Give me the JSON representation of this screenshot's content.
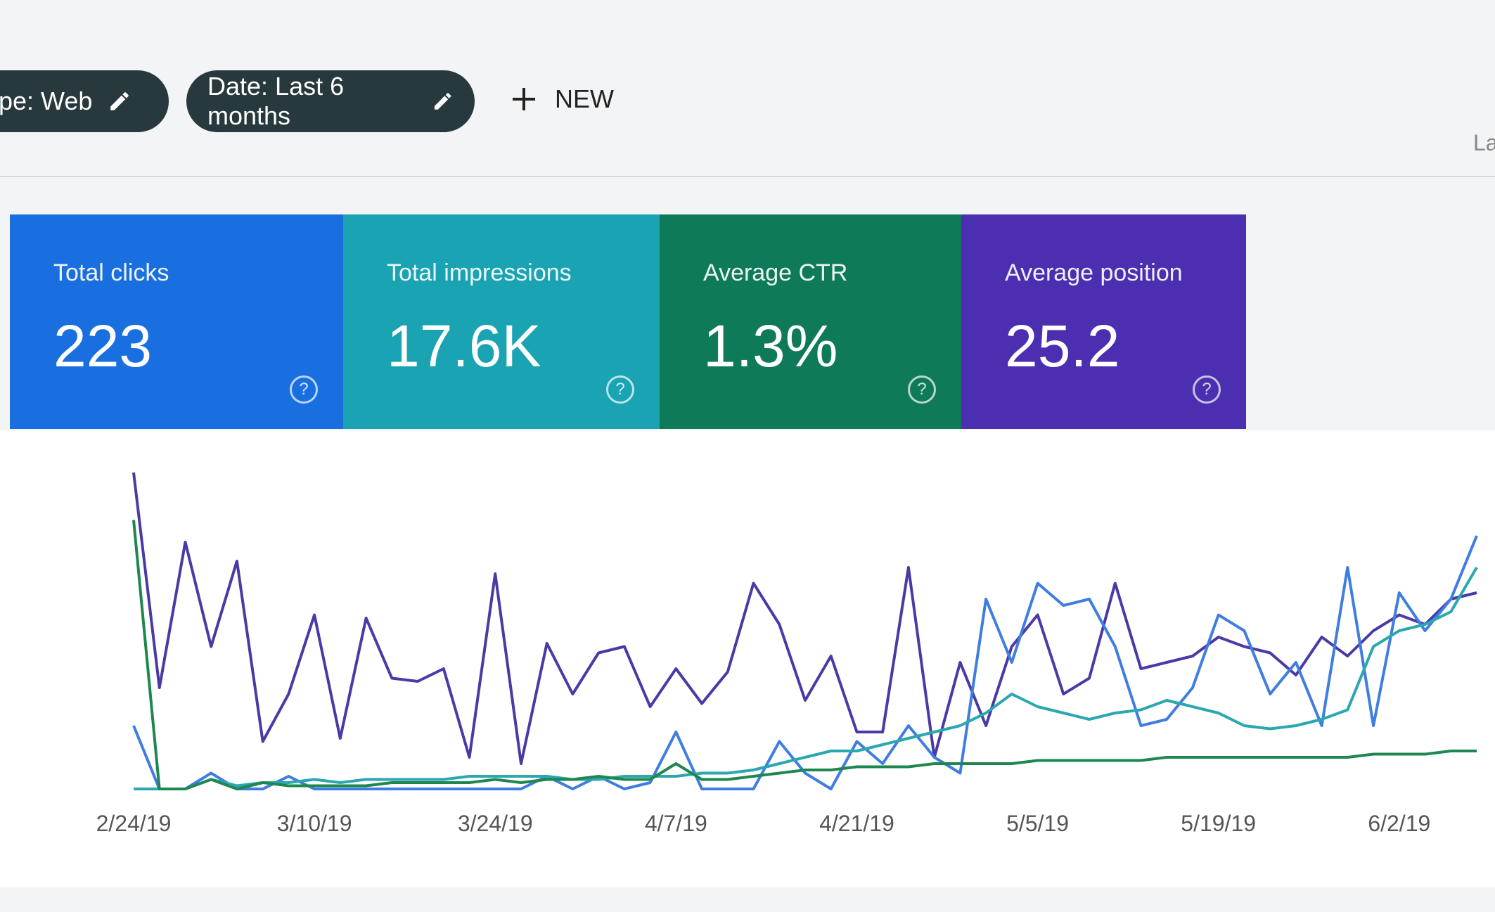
{
  "filters": [
    {
      "label": "type: Web"
    },
    {
      "label": "Date: Last 6 months"
    }
  ],
  "new_button": "NEW",
  "header_right": "La",
  "metrics": [
    {
      "title": "Total clicks",
      "value": "223",
      "color": "#1a6fe0"
    },
    {
      "title": "Total impressions",
      "value": "17.6K",
      "color": "#1aa3b3"
    },
    {
      "title": "Average CTR",
      "value": "1.3%",
      "color": "#0f7a5a"
    },
    {
      "title": "Average position",
      "value": "25.2",
      "color": "#4b2fb0"
    }
  ],
  "chart_data": {
    "type": "line",
    "categories": [
      "2/24/19",
      null,
      null,
      null,
      null,
      null,
      null,
      "3/10/19",
      null,
      null,
      null,
      null,
      null,
      null,
      "3/24/19",
      null,
      null,
      null,
      null,
      null,
      null,
      "4/7/19",
      null,
      null,
      null,
      null,
      null,
      null,
      "4/21/19",
      null,
      null,
      null,
      null,
      null,
      null,
      "5/5/19",
      null,
      null,
      null,
      null,
      null,
      null,
      "5/19/19",
      null,
      null,
      null,
      null,
      null,
      null,
      "6/2/19",
      null,
      null,
      null
    ],
    "ylim": [
      0,
      100
    ],
    "series": [
      {
        "color": "#4a3aa6",
        "values": [
          100,
          32,
          78,
          45,
          72,
          15,
          30,
          55,
          16,
          54,
          35,
          34,
          38,
          10,
          68,
          8,
          46,
          30,
          43,
          45,
          26,
          38,
          27,
          37,
          65,
          52,
          28,
          42,
          18,
          18,
          70,
          10,
          40,
          20,
          45,
          55,
          30,
          35,
          65,
          38,
          40,
          42,
          48,
          45,
          43,
          36,
          48,
          42,
          50,
          55,
          52,
          60,
          62
        ]
      },
      {
        "color": "#3f7de0",
        "values": [
          20,
          0,
          0,
          5,
          0,
          0,
          4,
          0,
          0,
          0,
          0,
          0,
          0,
          0,
          0,
          0,
          4,
          0,
          4,
          0,
          2,
          18,
          0,
          0,
          0,
          15,
          5,
          0,
          15,
          8,
          20,
          10,
          5,
          60,
          40,
          65,
          58,
          60,
          45,
          20,
          22,
          32,
          55,
          50,
          30,
          40,
          20,
          70,
          20,
          62,
          50,
          60,
          80
        ]
      },
      {
        "color": "#2aa7b0",
        "values": [
          0,
          0,
          0,
          3,
          1,
          2,
          2,
          3,
          2,
          3,
          3,
          3,
          3,
          4,
          4,
          4,
          4,
          3,
          3,
          4,
          4,
          4,
          5,
          5,
          6,
          8,
          10,
          12,
          12,
          14,
          16,
          18,
          20,
          24,
          30,
          26,
          24,
          22,
          24,
          25,
          28,
          26,
          24,
          20,
          19,
          20,
          22,
          25,
          45,
          50,
          52,
          56,
          70
        ]
      },
      {
        "color": "#1e8750",
        "values": [
          85,
          0,
          0,
          3,
          0,
          2,
          1,
          1,
          1,
          1,
          2,
          2,
          2,
          2,
          3,
          2,
          3,
          3,
          4,
          3,
          3,
          8,
          3,
          3,
          4,
          5,
          6,
          6,
          7,
          7,
          7,
          8,
          8,
          8,
          8,
          9,
          9,
          9,
          9,
          9,
          10,
          10,
          10,
          10,
          10,
          10,
          10,
          10,
          11,
          11,
          11,
          12,
          12
        ]
      }
    ]
  }
}
